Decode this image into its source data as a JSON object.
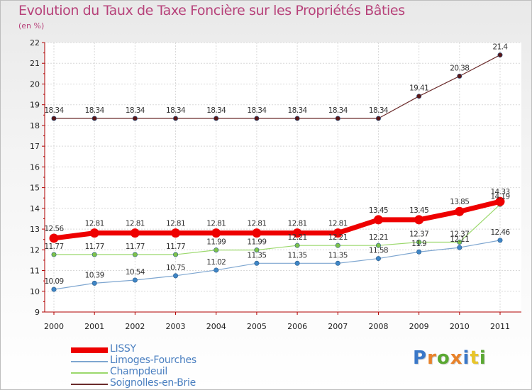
{
  "title": "Evolution du Taux de Taxe Foncière sur les Propriétés Bâties",
  "unit_label": "(en %)",
  "logo": {
    "text": "Proxiti",
    "letters": [
      "P",
      "r",
      "o",
      "x",
      "i",
      "t",
      "i"
    ],
    "colors": [
      "#3a78c8",
      "#e8822a",
      "#5aa832",
      "#e8822a",
      "#3a78c8",
      "#e8c52a",
      "#5aa832"
    ]
  },
  "chart_data": {
    "type": "line",
    "title": "Evolution du Taux de Taxe Foncière sur les Propriétés Bâties",
    "ylabel": "(en %)",
    "xlabel": "",
    "categories": [
      "2000",
      "2001",
      "2002",
      "2003",
      "2004",
      "2005",
      "2006",
      "2007",
      "2008",
      "2009",
      "2010",
      "2011"
    ],
    "ylim": [
      9,
      22
    ],
    "yticks": [
      "9",
      "10",
      "11",
      "12",
      "13",
      "14",
      "15",
      "16",
      "17",
      "18",
      "19",
      "20",
      "21",
      "22"
    ],
    "grid": true,
    "legend_position": "bottom-left",
    "series": [
      {
        "name": "Soignolles-en-Brie",
        "color": "#6b2b2b",
        "marker": "#5a1616",
        "width": 1.2,
        "values": [
          18.34,
          18.34,
          18.34,
          18.34,
          18.34,
          18.34,
          18.34,
          18.34,
          18.34,
          19.41,
          20.38,
          21.4
        ],
        "labels": [
          "18.34",
          "18.34",
          "18.34",
          "18.34",
          "18.34",
          "18.34",
          "18.34",
          "18.34",
          "18.34",
          "19.41",
          "20.38",
          "21.4"
        ]
      },
      {
        "name": "Limoges-Fourches",
        "color": "#7ea6d0",
        "marker": "#3f86c6",
        "width": 1.2,
        "values": [
          10.09,
          10.39,
          10.54,
          10.75,
          11.02,
          11.35,
          11.35,
          11.35,
          11.58,
          11.9,
          12.11,
          12.46
        ],
        "labels": [
          "10.09",
          "10.39",
          "10.54",
          "10.75",
          "11.02",
          "11.35",
          "11.35",
          "11.35",
          "11.58",
          "11.9",
          "12.11",
          "12.46"
        ]
      },
      {
        "name": "Champdeuil",
        "color": "#9bd86c",
        "marker": "#7ec24a",
        "width": 1.2,
        "values": [
          11.77,
          11.77,
          11.77,
          11.77,
          11.99,
          11.99,
          12.21,
          12.21,
          12.21,
          12.37,
          12.37,
          14.19
        ],
        "labels": [
          "11.77",
          "11.77",
          "11.77",
          "11.77",
          "11.99",
          "11.99",
          "12.21",
          "12.21",
          "12.21",
          "12.37",
          "12.37",
          "14.19"
        ]
      },
      {
        "name": "LISSY",
        "color": "#ee0000",
        "marker": "#ee0000",
        "width": 7,
        "values": [
          12.56,
          12.81,
          12.81,
          12.81,
          12.81,
          12.81,
          12.81,
          12.81,
          13.45,
          13.45,
          13.85,
          14.33
        ],
        "labels": [
          "12.56",
          "12.81",
          "12.81",
          "12.81",
          "12.81",
          "12.81",
          "12.81",
          "12.81",
          "13.45",
          "13.45",
          "13.85",
          "14.33"
        ]
      }
    ],
    "legend": [
      "LISSY",
      "Limoges-Fourches",
      "Champdeuil",
      "Soignolles-en-Brie"
    ]
  }
}
